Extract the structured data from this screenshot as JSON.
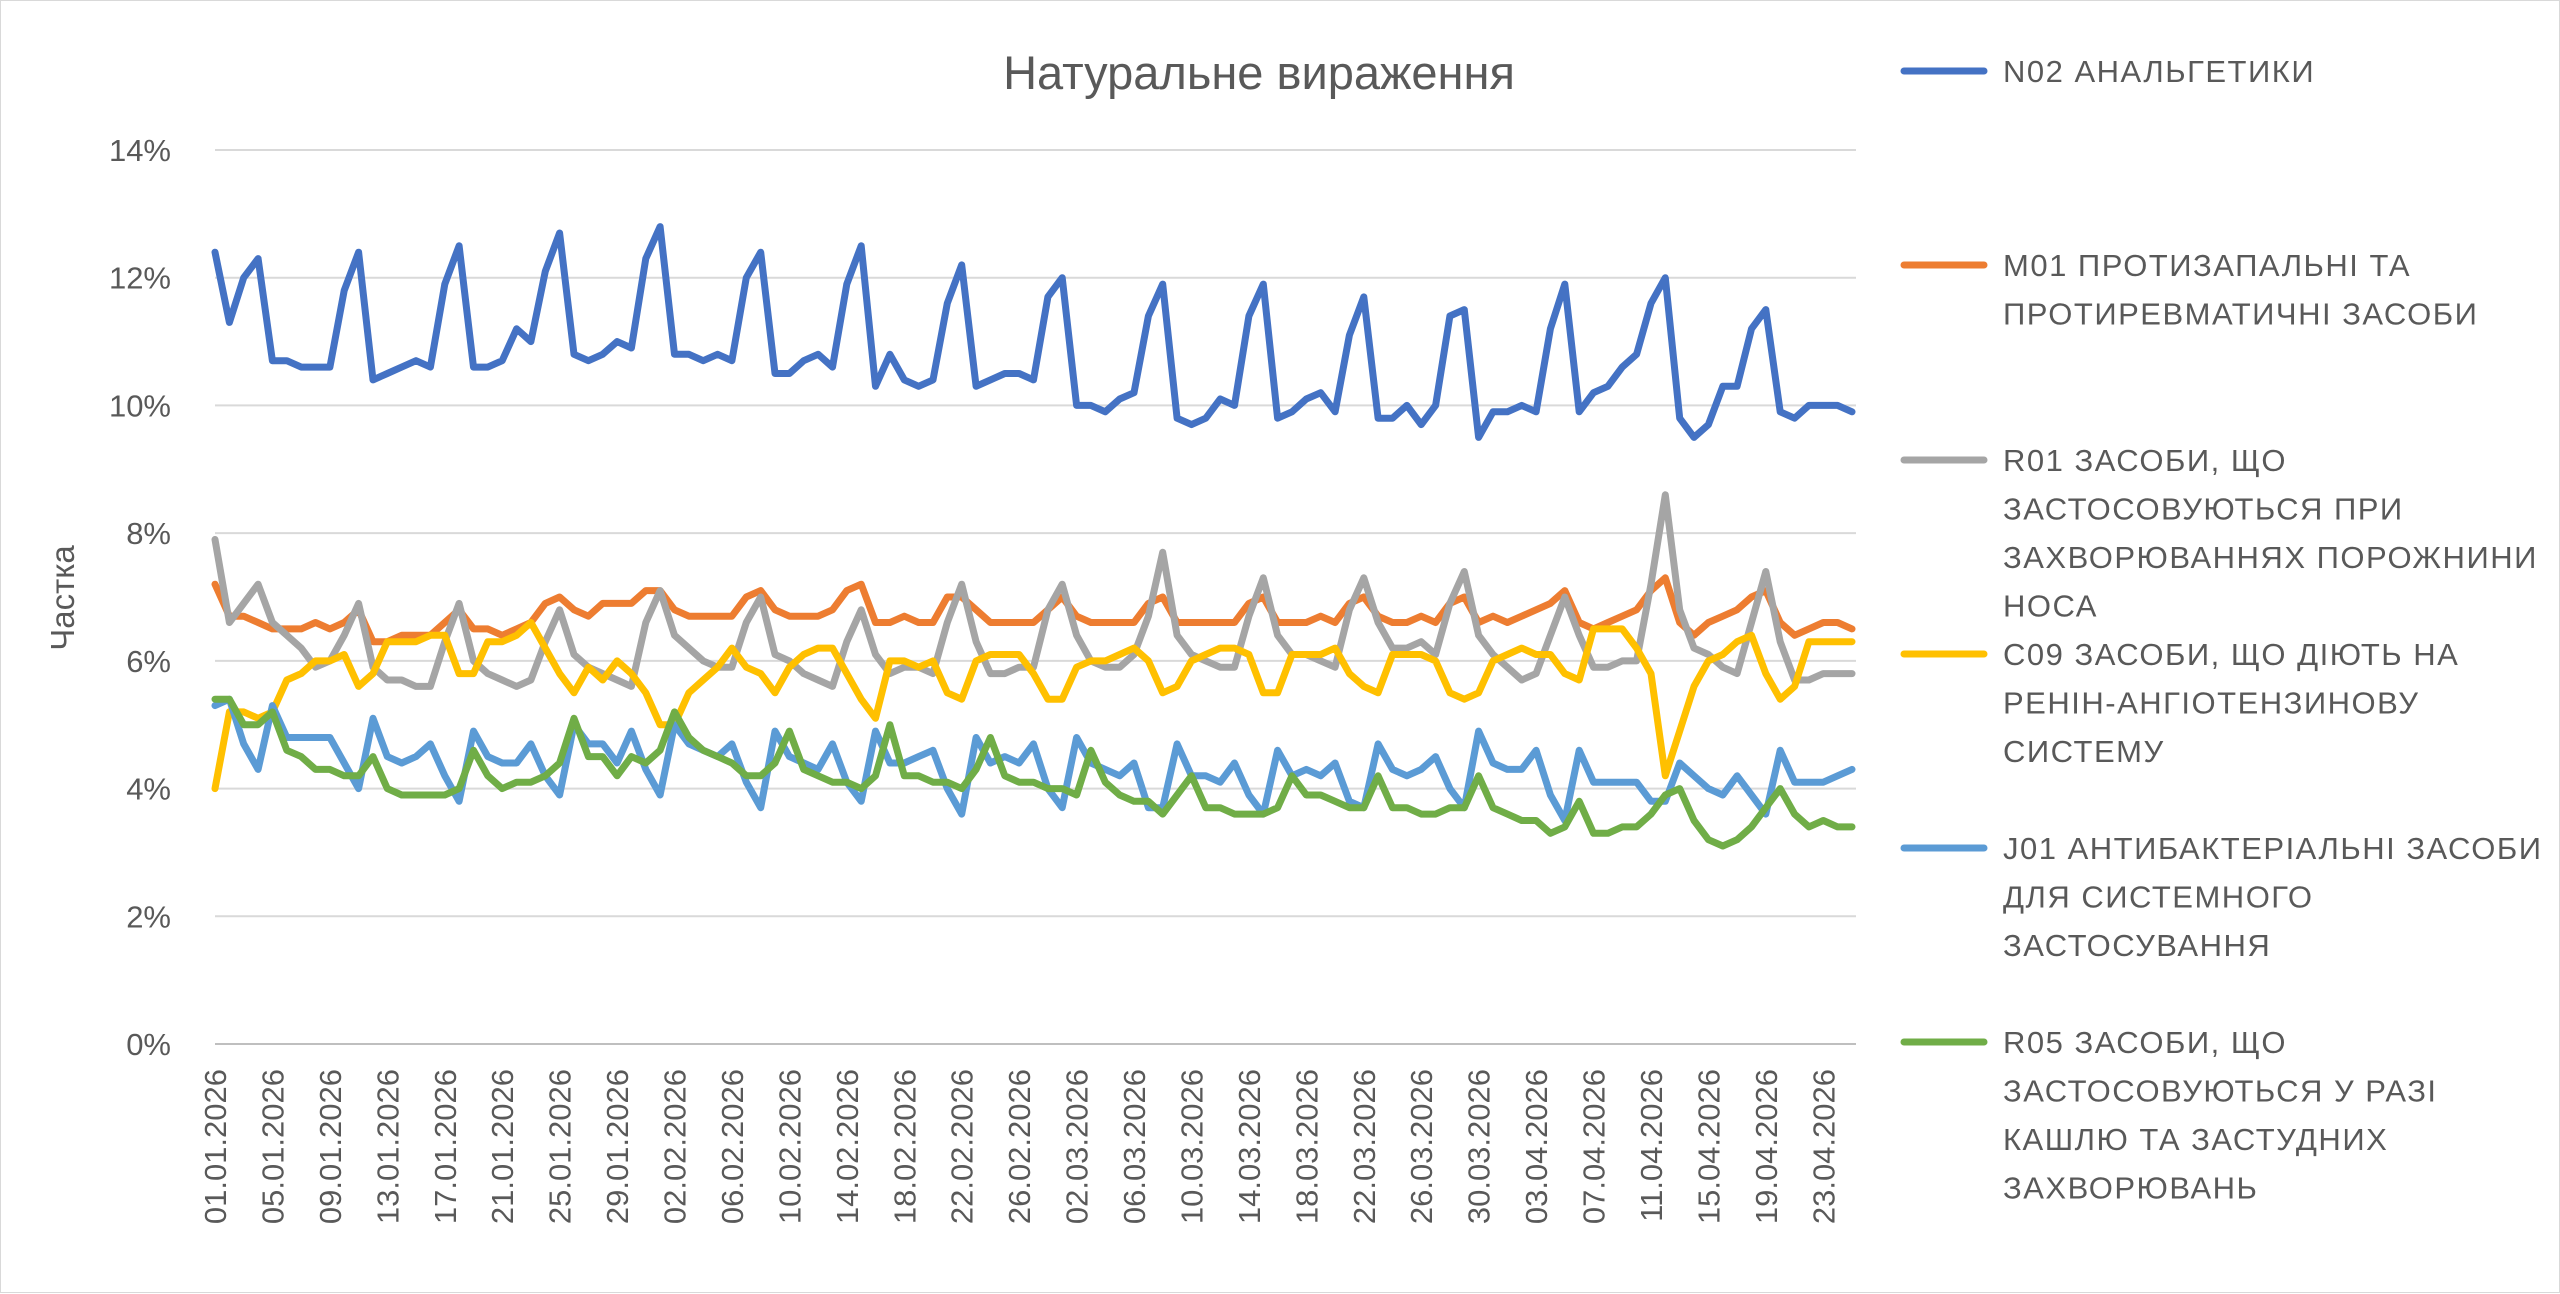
{
  "chart_data": {
    "type": "line",
    "title": "Натуральне вираження",
    "xlabel": "",
    "ylabel": "Частка",
    "ylim": [
      0,
      0.14
    ],
    "yticks": [
      0,
      0.02,
      0.04,
      0.06,
      0.08,
      0.1,
      0.12,
      0.14
    ],
    "ytick_labels": [
      "0%",
      "2%",
      "4%",
      "6%",
      "8%",
      "10%",
      "12%",
      "14%"
    ],
    "grid": "horizontal",
    "legend_position": "right",
    "x": [
      "01.01.2026",
      "02.01.2026",
      "03.01.2026",
      "04.01.2026",
      "05.01.2026",
      "06.01.2026",
      "07.01.2026",
      "08.01.2026",
      "09.01.2026",
      "10.01.2026",
      "11.01.2026",
      "12.01.2026",
      "13.01.2026",
      "14.01.2026",
      "15.01.2026",
      "16.01.2026",
      "17.01.2026",
      "18.01.2026",
      "19.01.2026",
      "20.01.2026",
      "21.01.2026",
      "22.01.2026",
      "23.01.2026",
      "24.01.2026",
      "25.01.2026",
      "26.01.2026",
      "27.01.2026",
      "28.01.2026",
      "29.01.2026",
      "30.01.2026",
      "31.01.2026",
      "01.02.2026",
      "02.02.2026",
      "03.02.2026",
      "04.02.2026",
      "05.02.2026",
      "06.02.2026",
      "07.02.2026",
      "08.02.2026",
      "09.02.2026",
      "10.02.2026",
      "11.02.2026",
      "12.02.2026",
      "13.02.2026",
      "14.02.2026",
      "15.02.2026",
      "16.02.2026",
      "17.02.2026",
      "18.02.2026",
      "19.02.2026",
      "20.02.2026",
      "21.02.2026",
      "22.02.2026",
      "23.02.2026",
      "24.02.2026",
      "25.02.2026",
      "26.02.2026",
      "27.02.2026",
      "28.02.2026",
      "01.03.2026",
      "02.03.2026",
      "03.03.2026",
      "04.03.2026",
      "05.03.2026",
      "06.03.2026",
      "07.03.2026",
      "08.03.2026",
      "09.03.2026",
      "10.03.2026",
      "11.03.2026",
      "12.03.2026",
      "13.03.2026",
      "14.03.2026",
      "15.03.2026",
      "16.03.2026",
      "17.03.2026",
      "18.03.2026",
      "19.03.2026",
      "20.03.2026",
      "21.03.2026",
      "22.03.2026",
      "23.03.2026",
      "24.03.2026",
      "25.03.2026",
      "26.03.2026",
      "27.03.2026",
      "28.03.2026",
      "29.03.2026",
      "30.03.2026",
      "31.03.2026",
      "01.04.2026",
      "02.04.2026",
      "03.04.2026",
      "04.04.2026",
      "05.04.2026",
      "06.04.2026",
      "07.04.2026",
      "08.04.2026",
      "09.04.2026",
      "10.04.2026",
      "11.04.2026",
      "12.04.2026",
      "13.04.2026",
      "14.04.2026",
      "15.04.2026",
      "16.04.2026",
      "17.04.2026",
      "18.04.2026",
      "19.04.2026",
      "20.04.2026",
      "21.04.2026",
      "22.04.2026",
      "23.04.2026",
      "24.04.2026",
      "25.04.2026"
    ],
    "xtick_labels": [
      "01.01.2026",
      "05.01.2026",
      "09.01.2026",
      "13.01.2026",
      "17.01.2026",
      "21.01.2026",
      "25.01.2026",
      "29.01.2026",
      "02.02.2026",
      "06.02.2026",
      "10.02.2026",
      "14.02.2026",
      "18.02.2026",
      "22.02.2026",
      "26.02.2026",
      "02.03.2026",
      "06.03.2026",
      "10.03.2026",
      "14.03.2026",
      "18.03.2026",
      "22.03.2026",
      "26.03.2026",
      "30.03.2026",
      "03.04.2026",
      "07.04.2026",
      "11.04.2026",
      "15.04.2026",
      "19.04.2026",
      "23.04.2026"
    ],
    "series": [
      {
        "name": "N02 АНАЛЬГЕТИКИ",
        "color": "#4472C4",
        "values": [
          0.124,
          0.113,
          0.12,
          0.123,
          0.107,
          0.107,
          0.106,
          0.106,
          0.106,
          0.118,
          0.124,
          0.104,
          0.105,
          0.106,
          0.107,
          0.106,
          0.119,
          0.125,
          0.106,
          0.106,
          0.107,
          0.112,
          0.11,
          0.121,
          0.127,
          0.108,
          0.107,
          0.108,
          0.11,
          0.109,
          0.123,
          0.128,
          0.108,
          0.108,
          0.107,
          0.108,
          0.107,
          0.12,
          0.124,
          0.105,
          0.105,
          0.107,
          0.108,
          0.106,
          0.119,
          0.125,
          0.103,
          0.108,
          0.104,
          0.103,
          0.104,
          0.116,
          0.122,
          0.103,
          0.104,
          0.105,
          0.105,
          0.104,
          0.117,
          0.12,
          0.1,
          0.1,
          0.099,
          0.101,
          0.102,
          0.114,
          0.119,
          0.098,
          0.097,
          0.098,
          0.101,
          0.1,
          0.114,
          0.119,
          0.098,
          0.099,
          0.101,
          0.102,
          0.099,
          0.111,
          0.117,
          0.098,
          0.098,
          0.1,
          0.097,
          0.1,
          0.114,
          0.115,
          0.095,
          0.099,
          0.099,
          0.1,
          0.099,
          0.112,
          0.119,
          0.099,
          0.102,
          0.103,
          0.106,
          0.108,
          0.116,
          0.12,
          0.098,
          0.095,
          0.097,
          0.103,
          0.103,
          0.112,
          0.115,
          0.099,
          0.098,
          0.1,
          0.1,
          0.1,
          0.099
        ]
      },
      {
        "name": "M01 ПРОТИЗАПАЛЬНІ ТА ПРОТИРЕВМАТИЧНІ ЗАСОБИ",
        "color": "#ED7D31",
        "values": [
          0.072,
          0.067,
          0.067,
          0.066,
          0.065,
          0.065,
          0.065,
          0.066,
          0.065,
          0.066,
          0.068,
          0.063,
          0.063,
          0.064,
          0.064,
          0.064,
          0.066,
          0.068,
          0.065,
          0.065,
          0.064,
          0.065,
          0.066,
          0.069,
          0.07,
          0.068,
          0.067,
          0.069,
          0.069,
          0.069,
          0.071,
          0.071,
          0.068,
          0.067,
          0.067,
          0.067,
          0.067,
          0.07,
          0.071,
          0.068,
          0.067,
          0.067,
          0.067,
          0.068,
          0.071,
          0.072,
          0.066,
          0.066,
          0.067,
          0.066,
          0.066,
          0.07,
          0.07,
          0.068,
          0.066,
          0.066,
          0.066,
          0.066,
          0.068,
          0.07,
          0.067,
          0.066,
          0.066,
          0.066,
          0.066,
          0.069,
          0.07,
          0.066,
          0.066,
          0.066,
          0.066,
          0.066,
          0.069,
          0.07,
          0.066,
          0.066,
          0.066,
          0.067,
          0.066,
          0.069,
          0.07,
          0.067,
          0.066,
          0.066,
          0.067,
          0.066,
          0.069,
          0.07,
          0.066,
          0.067,
          0.066,
          0.067,
          0.068,
          0.069,
          0.071,
          0.066,
          0.065,
          0.066,
          0.067,
          0.068,
          0.071,
          0.073,
          0.066,
          0.064,
          0.066,
          0.067,
          0.068,
          0.07,
          0.071,
          0.066,
          0.064,
          0.065,
          0.066,
          0.066,
          0.065
        ]
      },
      {
        "name": "R01 ЗАСОБИ, ЩО ЗАСТОСОВУЮТЬСЯ ПРИ ЗАХВОРЮВАННЯХ ПОРОЖНИНИ НОСА",
        "color": "#A5A5A5",
        "values": [
          0.079,
          0.066,
          0.069,
          0.072,
          0.066,
          0.064,
          0.062,
          0.059,
          0.06,
          0.064,
          0.069,
          0.059,
          0.057,
          0.057,
          0.056,
          0.056,
          0.063,
          0.069,
          0.06,
          0.058,
          0.057,
          0.056,
          0.057,
          0.063,
          0.068,
          0.061,
          0.059,
          0.058,
          0.057,
          0.056,
          0.066,
          0.071,
          0.064,
          0.062,
          0.06,
          0.059,
          0.059,
          0.066,
          0.07,
          0.061,
          0.06,
          0.058,
          0.057,
          0.056,
          0.063,
          0.068,
          0.061,
          0.058,
          0.059,
          0.059,
          0.058,
          0.066,
          0.072,
          0.063,
          0.058,
          0.058,
          0.059,
          0.059,
          0.068,
          0.072,
          0.064,
          0.06,
          0.059,
          0.059,
          0.061,
          0.067,
          0.077,
          0.064,
          0.061,
          0.06,
          0.059,
          0.059,
          0.067,
          0.073,
          0.064,
          0.061,
          0.061,
          0.06,
          0.059,
          0.068,
          0.073,
          0.066,
          0.062,
          0.062,
          0.063,
          0.061,
          0.069,
          0.074,
          0.064,
          0.061,
          0.059,
          0.057,
          0.058,
          0.064,
          0.07,
          0.064,
          0.059,
          0.059,
          0.06,
          0.06,
          0.072,
          0.086,
          0.068,
          0.062,
          0.061,
          0.059,
          0.058,
          0.066,
          0.074,
          0.063,
          0.057,
          0.057,
          0.058,
          0.058,
          0.058
        ]
      },
      {
        "name": "C09 ЗАСОБИ, ЩО ДІЮТЬ НА РЕНІН-АНГІОТЕНЗИНОВУ СИСТЕМУ",
        "color": "#FFC000",
        "values": [
          0.04,
          0.052,
          0.052,
          0.051,
          0.052,
          0.057,
          0.058,
          0.06,
          0.06,
          0.061,
          0.056,
          0.058,
          0.063,
          0.063,
          0.063,
          0.064,
          0.064,
          0.058,
          0.058,
          0.063,
          0.063,
          0.064,
          0.066,
          0.062,
          0.058,
          0.055,
          0.059,
          0.057,
          0.06,
          0.058,
          0.055,
          0.05,
          0.05,
          0.055,
          0.057,
          0.059,
          0.062,
          0.059,
          0.058,
          0.055,
          0.059,
          0.061,
          0.062,
          0.062,
          0.058,
          0.054,
          0.051,
          0.06,
          0.06,
          0.059,
          0.06,
          0.055,
          0.054,
          0.06,
          0.061,
          0.061,
          0.061,
          0.058,
          0.054,
          0.054,
          0.059,
          0.06,
          0.06,
          0.061,
          0.062,
          0.06,
          0.055,
          0.056,
          0.06,
          0.061,
          0.062,
          0.062,
          0.061,
          0.055,
          0.055,
          0.061,
          0.061,
          0.061,
          0.062,
          0.058,
          0.056,
          0.055,
          0.061,
          0.061,
          0.061,
          0.06,
          0.055,
          0.054,
          0.055,
          0.06,
          0.061,
          0.062,
          0.061,
          0.061,
          0.058,
          0.057,
          0.065,
          0.065,
          0.065,
          0.062,
          0.058,
          0.042,
          0.049,
          0.056,
          0.06,
          0.061,
          0.063,
          0.064,
          0.058,
          0.054,
          0.056,
          0.063,
          0.063,
          0.063,
          0.063
        ]
      },
      {
        "name": "J01 АНТИБАКТЕРІАЛЬНІ ЗАСОБИ ДЛЯ СИСТЕМНОГО ЗАСТОСУВАННЯ",
        "color": "#5B9BD5",
        "values": [
          0.053,
          0.054,
          0.047,
          0.043,
          0.053,
          0.048,
          0.048,
          0.048,
          0.048,
          0.044,
          0.04,
          0.051,
          0.045,
          0.044,
          0.045,
          0.047,
          0.042,
          0.038,
          0.049,
          0.045,
          0.044,
          0.044,
          0.047,
          0.042,
          0.039,
          0.05,
          0.047,
          0.047,
          0.044,
          0.049,
          0.043,
          0.039,
          0.05,
          0.047,
          0.046,
          0.045,
          0.047,
          0.041,
          0.037,
          0.049,
          0.045,
          0.044,
          0.043,
          0.047,
          0.041,
          0.038,
          0.049,
          0.044,
          0.044,
          0.045,
          0.046,
          0.04,
          0.036,
          0.048,
          0.044,
          0.045,
          0.044,
          0.047,
          0.04,
          0.037,
          0.048,
          0.044,
          0.043,
          0.042,
          0.044,
          0.037,
          0.037,
          0.047,
          0.042,
          0.042,
          0.041,
          0.044,
          0.039,
          0.036,
          0.046,
          0.042,
          0.043,
          0.042,
          0.044,
          0.038,
          0.037,
          0.047,
          0.043,
          0.042,
          0.043,
          0.045,
          0.04,
          0.037,
          0.049,
          0.044,
          0.043,
          0.043,
          0.046,
          0.039,
          0.035,
          0.046,
          0.041,
          0.041,
          0.041,
          0.041,
          0.038,
          0.038,
          0.044,
          0.042,
          0.04,
          0.039,
          0.042,
          0.039,
          0.036,
          0.046,
          0.041,
          0.041,
          0.041,
          0.042,
          0.043
        ]
      },
      {
        "name": "R05 ЗАСОБИ, ЩО ЗАСТОСОВУЮТЬСЯ У РАЗІ КАШЛЮ ТА ЗАСТУДНИХ ЗАХВОРЮВАНЬ",
        "color": "#70AD47",
        "values": [
          0.054,
          0.054,
          0.05,
          0.05,
          0.052,
          0.046,
          0.045,
          0.043,
          0.043,
          0.042,
          0.042,
          0.045,
          0.04,
          0.039,
          0.039,
          0.039,
          0.039,
          0.04,
          0.046,
          0.042,
          0.04,
          0.041,
          0.041,
          0.042,
          0.044,
          0.051,
          0.045,
          0.045,
          0.042,
          0.045,
          0.044,
          0.046,
          0.052,
          0.048,
          0.046,
          0.045,
          0.044,
          0.042,
          0.042,
          0.044,
          0.049,
          0.043,
          0.042,
          0.041,
          0.041,
          0.04,
          0.042,
          0.05,
          0.042,
          0.042,
          0.041,
          0.041,
          0.04,
          0.043,
          0.048,
          0.042,
          0.041,
          0.041,
          0.04,
          0.04,
          0.039,
          0.046,
          0.041,
          0.039,
          0.038,
          0.038,
          0.036,
          0.039,
          0.042,
          0.037,
          0.037,
          0.036,
          0.036,
          0.036,
          0.037,
          0.042,
          0.039,
          0.039,
          0.038,
          0.037,
          0.037,
          0.042,
          0.037,
          0.037,
          0.036,
          0.036,
          0.037,
          0.037,
          0.042,
          0.037,
          0.036,
          0.035,
          0.035,
          0.033,
          0.034,
          0.038,
          0.033,
          0.033,
          0.034,
          0.034,
          0.036,
          0.039,
          0.04,
          0.035,
          0.032,
          0.031,
          0.032,
          0.034,
          0.037,
          0.04,
          0.036,
          0.034,
          0.035,
          0.034,
          0.034
        ]
      }
    ]
  }
}
